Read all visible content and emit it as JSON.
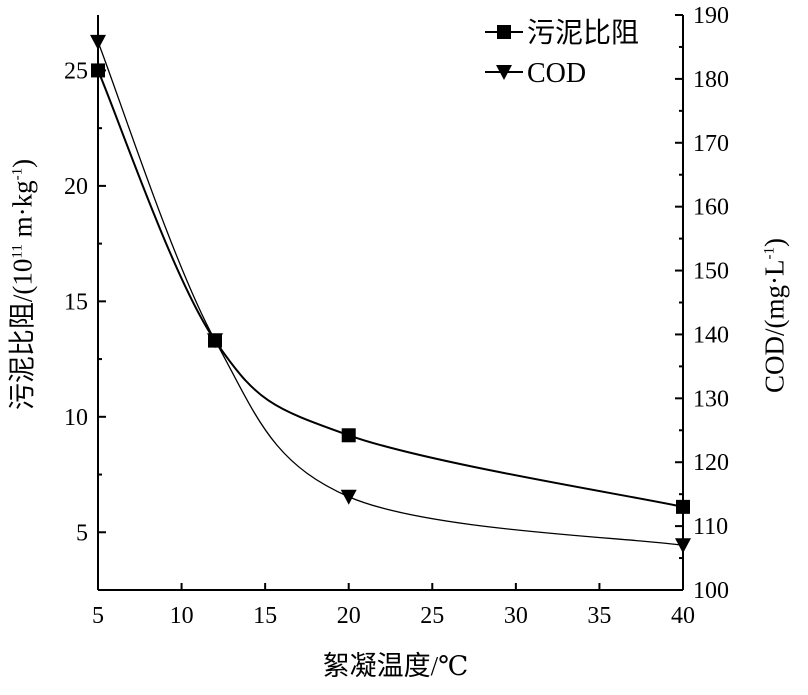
{
  "chart_data": {
    "type": "line",
    "xlabel": "絮凝温度/℃",
    "ylabel_left": {
      "main": "污泥比阻/(10",
      "sup1": "11",
      "mid": " m·kg",
      "sup2": "-1",
      "end": ")"
    },
    "ylabel_right": {
      "main": "COD/(mg·L",
      "sup": "-1",
      "end": ")"
    },
    "x": [
      5,
      12,
      20,
      40
    ],
    "xlim": [
      5,
      40
    ],
    "xticks": [
      "5",
      "10",
      "15",
      "20",
      "25",
      "30",
      "35",
      "40"
    ],
    "ylim_left": [
      2.5,
      27.4
    ],
    "yticks_left": [
      "5",
      "10",
      "15",
      "20",
      "25"
    ],
    "ylim_right": [
      100,
      190
    ],
    "yticks_right": [
      "100",
      "110",
      "120",
      "130",
      "140",
      "150",
      "160",
      "170",
      "180",
      "190"
    ],
    "legend_position": "top-right",
    "grid": false,
    "series": [
      {
        "name": "污泥比阻",
        "axis": "left",
        "marker": "square",
        "values": [
          25.0,
          13.3,
          9.2,
          6.1
        ]
      },
      {
        "name": "COD",
        "axis": "right",
        "marker": "triangle-down",
        "values": [
          185.8,
          139.1,
          114.6,
          107.0
        ]
      }
    ]
  }
}
